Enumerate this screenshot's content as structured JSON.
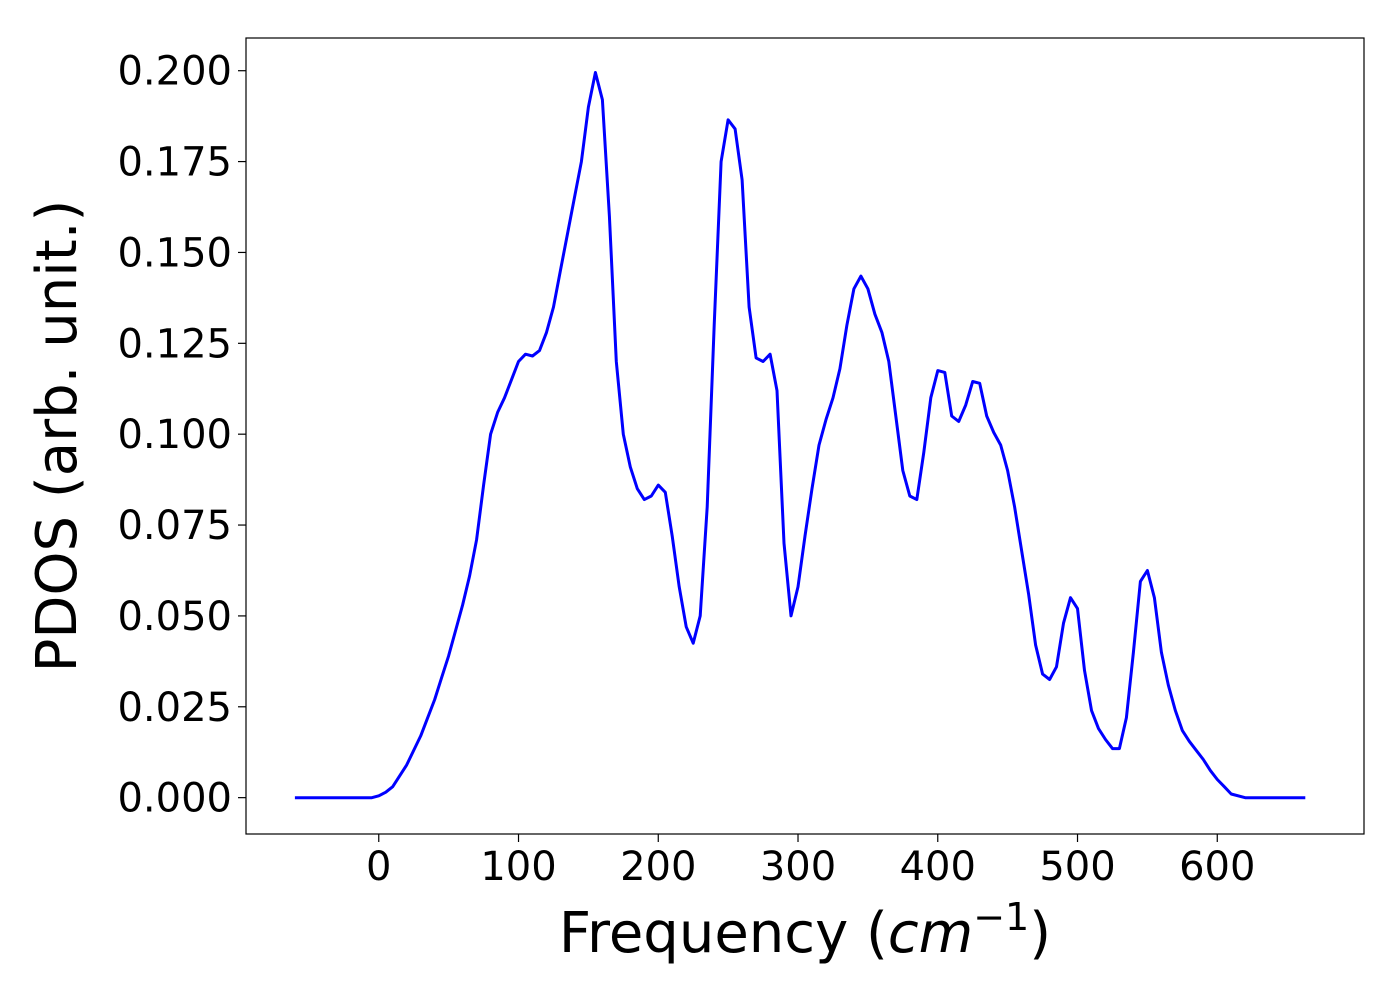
{
  "chart_data": {
    "type": "line",
    "xlabel": "Frequency (cm⁻¹)",
    "xlabel_parts": {
      "prefix": "Frequency (",
      "math": "cm",
      "sup": "−1",
      "suffix": ")"
    },
    "ylabel": "PDOS (arb. unit.)",
    "xlim": [
      -95,
      705
    ],
    "ylim": [
      -0.01,
      0.209
    ],
    "xticks": [
      0,
      100,
      200,
      300,
      400,
      500,
      600
    ],
    "xtick_labels": [
      "0",
      "100",
      "200",
      "300",
      "400",
      "500",
      "600"
    ],
    "yticks": [
      0.0,
      0.025,
      0.05,
      0.075,
      0.1,
      0.125,
      0.15,
      0.175,
      0.2
    ],
    "ytick_labels": [
      "0.000",
      "0.025",
      "0.050",
      "0.075",
      "0.100",
      "0.125",
      "0.150",
      "0.175",
      "0.200"
    ],
    "grid": false,
    "line_color": "#0000ff",
    "series": [
      {
        "x": [
          -60,
          -40,
          -20,
          -5,
          0,
          5,
          10,
          15,
          20,
          25,
          30,
          35,
          40,
          45,
          50,
          55,
          60,
          65,
          70,
          75,
          80,
          85,
          90,
          95,
          100,
          105,
          110,
          115,
          120,
          125,
          130,
          135,
          140,
          145,
          150,
          155,
          160,
          165,
          170,
          175,
          180,
          185,
          190,
          195,
          200,
          205,
          210,
          215,
          220,
          225,
          230,
          235,
          240,
          245,
          250,
          255,
          260,
          265,
          270,
          275,
          280,
          285,
          290,
          295,
          300,
          305,
          310,
          315,
          320,
          325,
          330,
          335,
          340,
          345,
          350,
          355,
          360,
          365,
          370,
          375,
          380,
          385,
          390,
          395,
          400,
          405,
          410,
          415,
          420,
          425,
          430,
          435,
          440,
          445,
          450,
          455,
          460,
          465,
          470,
          475,
          480,
          485,
          490,
          495,
          500,
          505,
          510,
          515,
          520,
          525,
          530,
          535,
          540,
          545,
          550,
          555,
          560,
          565,
          570,
          575,
          580,
          585,
          590,
          595,
          600,
          605,
          610,
          620,
          640,
          663
        ],
        "y": [
          0.0,
          0.0,
          0.0,
          0.0,
          0.0005,
          0.0015,
          0.003,
          0.006,
          0.009,
          0.013,
          0.017,
          0.022,
          0.027,
          0.033,
          0.039,
          0.046,
          0.053,
          0.061,
          0.071,
          0.086,
          0.1,
          0.106,
          0.11,
          0.115,
          0.12,
          0.122,
          0.1215,
          0.123,
          0.128,
          0.135,
          0.145,
          0.155,
          0.165,
          0.175,
          0.19,
          0.1995,
          0.192,
          0.16,
          0.12,
          0.1,
          0.091,
          0.085,
          0.082,
          0.083,
          0.086,
          0.084,
          0.072,
          0.058,
          0.047,
          0.0425,
          0.05,
          0.08,
          0.13,
          0.175,
          0.1865,
          0.184,
          0.17,
          0.135,
          0.121,
          0.12,
          0.122,
          0.112,
          0.07,
          0.05,
          0.058,
          0.072,
          0.085,
          0.097,
          0.104,
          0.11,
          0.118,
          0.13,
          0.14,
          0.1435,
          0.14,
          0.133,
          0.128,
          0.12,
          0.105,
          0.09,
          0.083,
          0.082,
          0.095,
          0.11,
          0.1175,
          0.117,
          0.105,
          0.1035,
          0.108,
          0.1145,
          0.114,
          0.105,
          0.1005,
          0.097,
          0.09,
          0.08,
          0.068,
          0.056,
          0.042,
          0.034,
          0.0325,
          0.036,
          0.048,
          0.055,
          0.052,
          0.035,
          0.024,
          0.019,
          0.016,
          0.0135,
          0.0135,
          0.022,
          0.04,
          0.0595,
          0.0625,
          0.055,
          0.04,
          0.031,
          0.024,
          0.0185,
          0.0155,
          0.013,
          0.0105,
          0.0075,
          0.005,
          0.003,
          0.001,
          0.0,
          0.0,
          0.0
        ]
      }
    ]
  }
}
